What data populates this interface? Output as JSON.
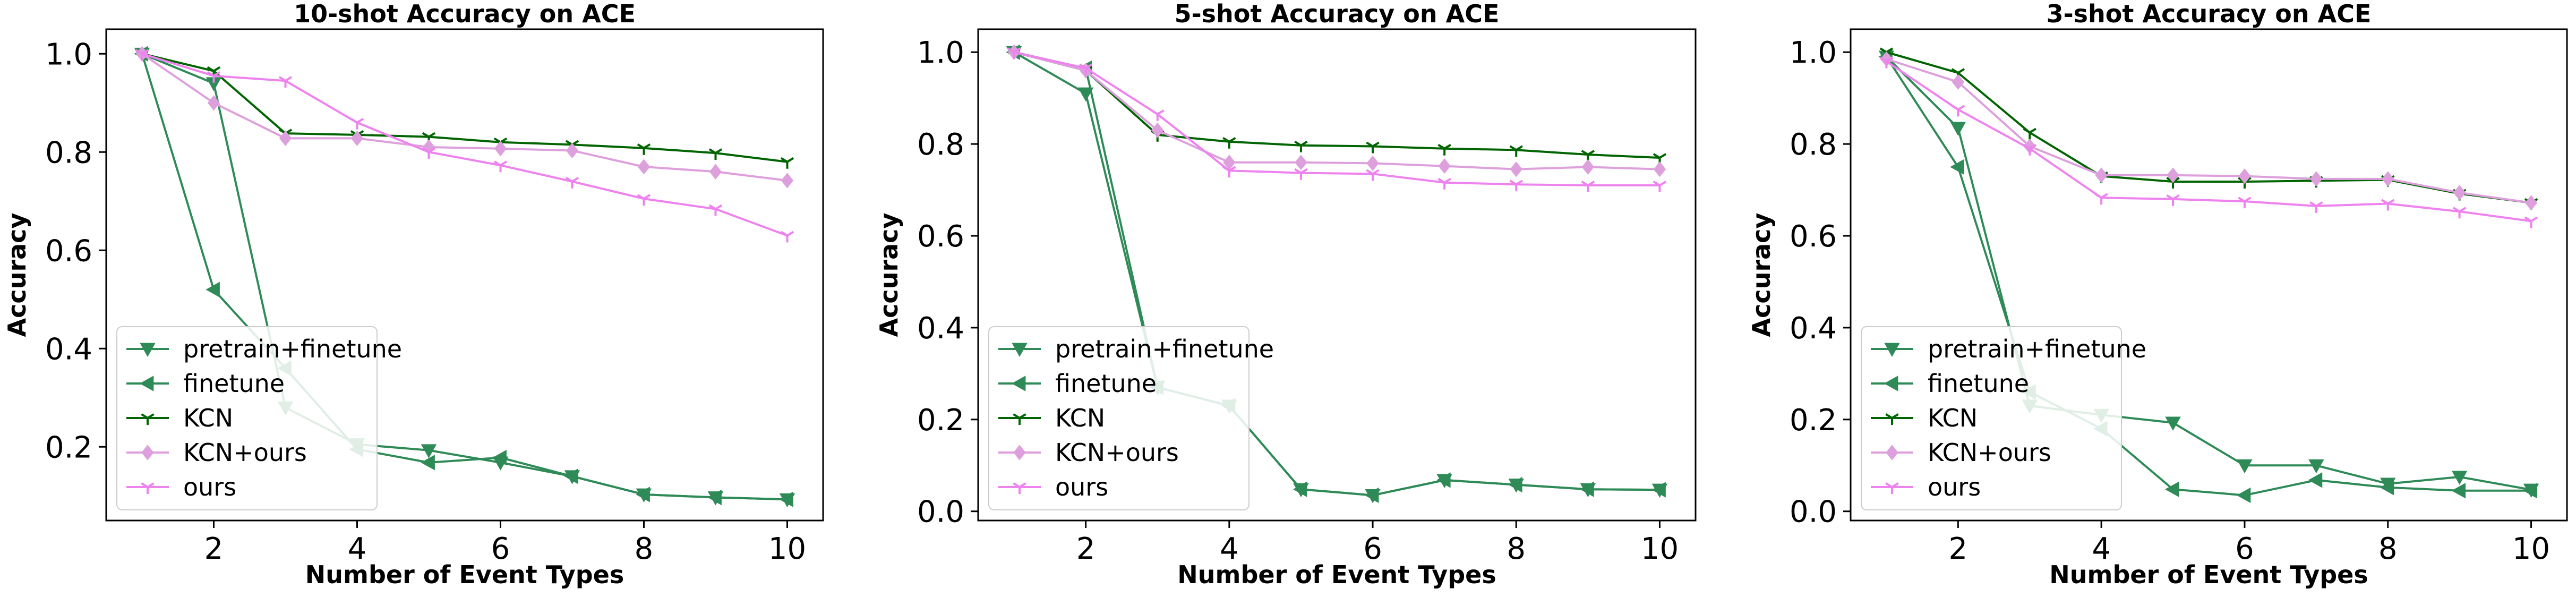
{
  "chart_data": [
    {
      "type": "line",
      "title": "10-shot Accuracy on ACE",
      "xlabel": "Number of Event Types",
      "ylabel": "Accuracy",
      "xlim": [
        0.5,
        10.5
      ],
      "ylim": [
        0.05,
        1.05
      ],
      "xticks": [
        2,
        4,
        6,
        8,
        10
      ],
      "yticks": [
        0.2,
        0.4,
        0.6,
        0.8,
        1.0
      ],
      "grid": false,
      "legend_position": "lower-left",
      "x": [
        1,
        2,
        3,
        4,
        5,
        6,
        7,
        8,
        9,
        10
      ],
      "series": [
        {
          "name": "pretrain+finetune",
          "color": "#2e8b57",
          "marker": "triangle-down",
          "values": [
            1.0,
            0.94,
            0.28,
            0.205,
            0.193,
            0.168,
            0.14,
            0.103,
            0.097,
            0.093
          ]
        },
        {
          "name": "finetune",
          "color": "#2e8b57",
          "marker": "triangle-left",
          "values": [
            1.0,
            0.52,
            0.36,
            0.195,
            0.168,
            0.178,
            0.14,
            0.103,
            0.097,
            0.093
          ]
        },
        {
          "name": "KCN",
          "color": "#006400",
          "marker": "tri",
          "values": [
            1.0,
            0.965,
            0.838,
            0.835,
            0.831,
            0.82,
            0.815,
            0.808,
            0.798,
            0.78
          ]
        },
        {
          "name": "KCN+ours",
          "color": "#dda0dd",
          "marker": "diamond",
          "values": [
            1.0,
            0.9,
            0.828,
            0.828,
            0.81,
            0.807,
            0.803,
            0.77,
            0.76,
            0.742
          ]
        },
        {
          "name": "ours",
          "color": "#ee82ee",
          "marker": "tri",
          "values": [
            1.0,
            0.955,
            0.945,
            0.86,
            0.8,
            0.773,
            0.74,
            0.705,
            0.684,
            0.63
          ]
        }
      ]
    },
    {
      "type": "line",
      "title": "5-shot Accuracy on ACE",
      "xlabel": "Number of Event Types",
      "ylabel": "Accuracy",
      "xlim": [
        0.5,
        10.5
      ],
      "ylim": [
        -0.02,
        1.05
      ],
      "xticks": [
        2,
        4,
        6,
        8,
        10
      ],
      "yticks": [
        0.0,
        0.2,
        0.4,
        0.6,
        0.8,
        1.0
      ],
      "grid": false,
      "legend_position": "lower-left",
      "x": [
        1,
        2,
        3,
        4,
        5,
        6,
        7,
        8,
        9,
        10
      ],
      "series": [
        {
          "name": "pretrain+finetune",
          "color": "#2e8b57",
          "marker": "triangle-down",
          "values": [
            1.0,
            0.91,
            0.27,
            0.23,
            0.048,
            0.035,
            0.068,
            0.058,
            0.048,
            0.047
          ]
        },
        {
          "name": "finetune",
          "color": "#2e8b57",
          "marker": "triangle-left",
          "values": [
            1.0,
            0.965,
            0.27,
            0.23,
            0.048,
            0.035,
            0.068,
            0.058,
            0.048,
            0.047
          ]
        },
        {
          "name": "KCN",
          "color": "#006400",
          "marker": "tri",
          "values": [
            1.0,
            0.96,
            0.82,
            0.805,
            0.797,
            0.795,
            0.79,
            0.787,
            0.777,
            0.77
          ]
        },
        {
          "name": "KCN+ours",
          "color": "#dda0dd",
          "marker": "diamond",
          "values": [
            1.0,
            0.96,
            0.83,
            0.76,
            0.76,
            0.758,
            0.752,
            0.745,
            0.75,
            0.745
          ]
        },
        {
          "name": "ours",
          "color": "#ee82ee",
          "marker": "tri",
          "values": [
            1.0,
            0.965,
            0.865,
            0.742,
            0.737,
            0.735,
            0.716,
            0.712,
            0.71,
            0.71
          ]
        }
      ]
    },
    {
      "type": "line",
      "title": "3-shot Accuracy on ACE",
      "xlabel": "Number of Event Types",
      "ylabel": "Accuracy",
      "xlim": [
        0.5,
        10.5
      ],
      "ylim": [
        -0.02,
        1.05
      ],
      "xticks": [
        2,
        4,
        6,
        8,
        10
      ],
      "yticks": [
        0.0,
        0.2,
        0.4,
        0.6,
        0.8,
        1.0
      ],
      "grid": false,
      "legend_position": "lower-left",
      "x": [
        1,
        2,
        3,
        4,
        5,
        6,
        7,
        8,
        9,
        10
      ],
      "series": [
        {
          "name": "pretrain+finetune",
          "color": "#2e8b57",
          "marker": "triangle-down",
          "values": [
            0.99,
            0.835,
            0.23,
            0.21,
            0.193,
            0.1,
            0.1,
            0.06,
            0.075,
            0.047
          ]
        },
        {
          "name": "finetune",
          "color": "#2e8b57",
          "marker": "triangle-left",
          "values": [
            0.99,
            0.75,
            0.26,
            0.18,
            0.048,
            0.035,
            0.068,
            0.052,
            0.045,
            0.045
          ]
        },
        {
          "name": "KCN",
          "color": "#006400",
          "marker": "tri",
          "values": [
            1.0,
            0.955,
            0.825,
            0.73,
            0.718,
            0.718,
            0.72,
            0.722,
            0.692,
            0.672
          ]
        },
        {
          "name": "KCN+ours",
          "color": "#dda0dd",
          "marker": "diamond",
          "values": [
            0.985,
            0.935,
            0.795,
            0.732,
            0.732,
            0.73,
            0.724,
            0.724,
            0.694,
            0.672
          ]
        },
        {
          "name": "ours",
          "color": "#ee82ee",
          "marker": "tri",
          "values": [
            0.98,
            0.875,
            0.79,
            0.683,
            0.68,
            0.675,
            0.665,
            0.67,
            0.653,
            0.632
          ]
        }
      ]
    }
  ]
}
